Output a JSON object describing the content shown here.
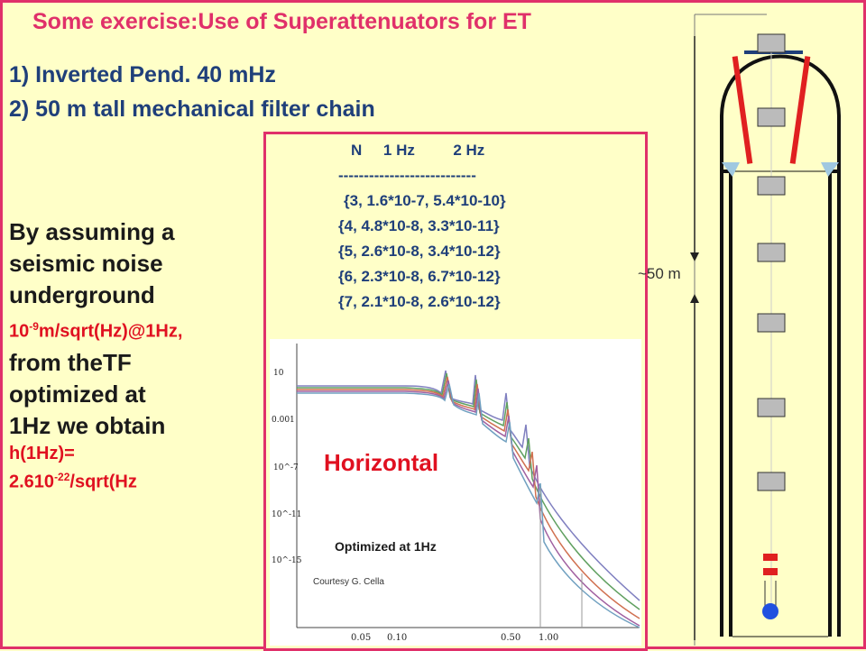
{
  "title": "Some exercise:Use of Superattenuators for ET",
  "items": [
    "1) Inverted Pend. 40 mHz",
    "2) 50 m tall mechanical filter chain"
  ],
  "left_text": {
    "l1": "By assuming a",
    "l2": "seismic noise",
    "l3": "underground",
    "noise_base": "10",
    "noise_exp": "-9",
    "noise_rest": "m/sqrt(Hz)@1Hz,",
    "l4": "from theTF",
    "l5": "optimized at",
    "l6": "1Hz we obtain",
    "h_label": "h(1Hz)=",
    "h_base": "2.610",
    "h_exp": "-22",
    "h_rest": "/sqrt(Hz"
  },
  "table": {
    "header": "N     1 Hz         2 Hz",
    "separator": "---------------------------",
    "rows": [
      "{3, 1.6*10-7,  5.4*10-10}",
      "{4, 4.8*10-8,  3.3*10-11}",
      "{5, 2.6*10-8,  3.4*10-12}",
      "{6, 2.3*10-8,  6.7*10-12}",
      "{7, 2.1*10-8,  2.6*10-12}"
    ]
  },
  "plot": {
    "label": "Horizontal",
    "optimized": "Optimized at 1Hz",
    "courtesy": "Courtesy G. Cella",
    "y_ticks": [
      "10",
      "0.001",
      "10^-7",
      "10^-11",
      "10^-15"
    ],
    "x_ticks": [
      "0.05",
      "0.10",
      "0.50",
      "1.00"
    ]
  },
  "distance_label": "~50 m"
}
